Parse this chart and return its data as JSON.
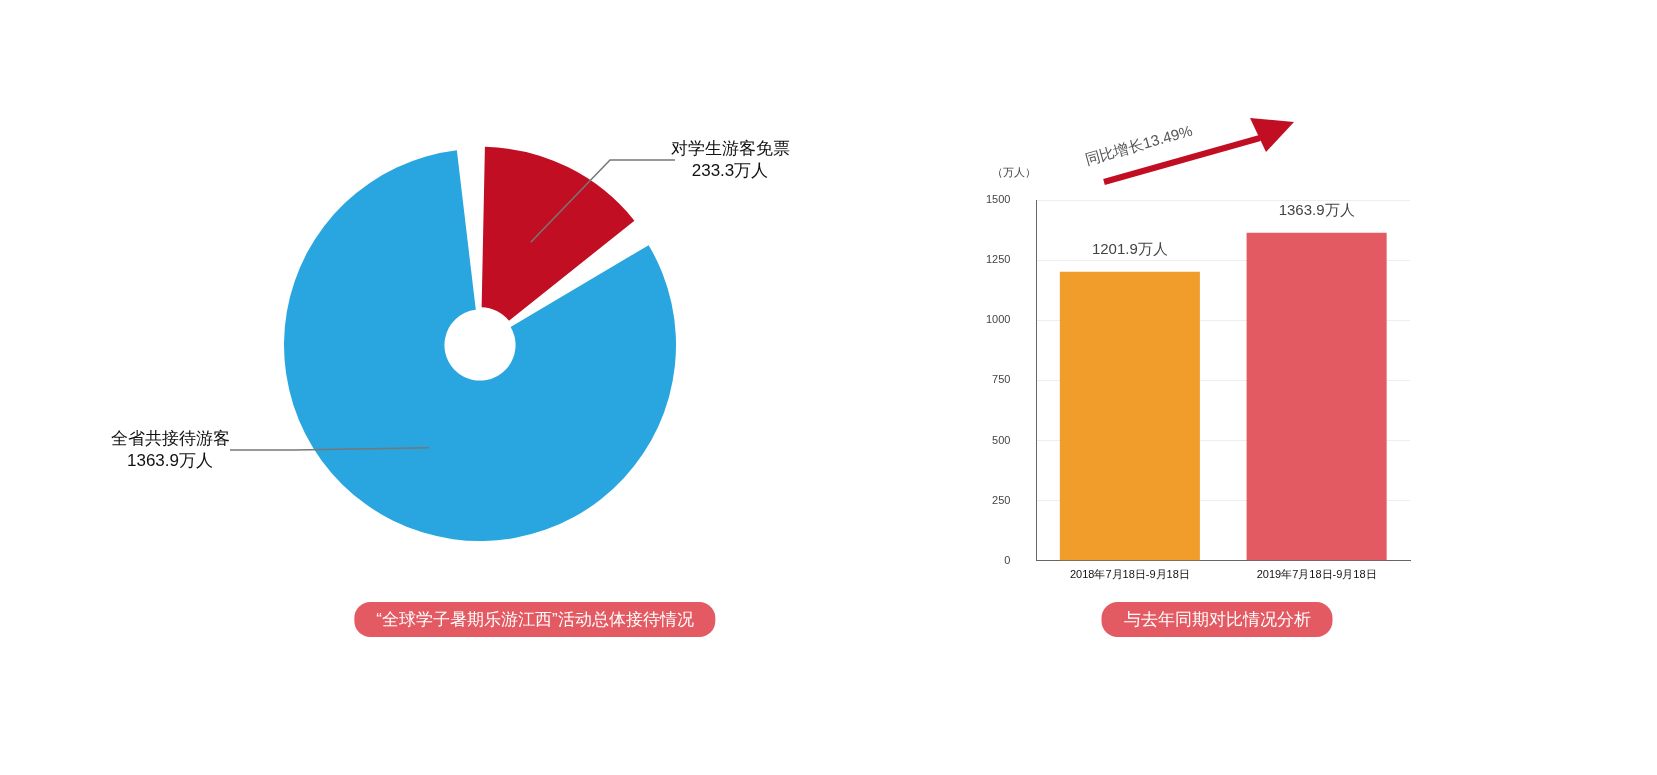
{
  "chart_data": [
    {
      "type": "donut",
      "title": "“全球学子暑期乐游江西”活动总体接待情况",
      "categories": [
        "对学生游客免票",
        "全省共接待游客"
      ],
      "values": [
        233.3,
        1363.9
      ],
      "colors": [
        "#c20e23",
        "#29a6df"
      ],
      "value_labels": [
        "233.3万人",
        "1363.9万人"
      ]
    },
    {
      "type": "bar",
      "title": "与去年同期对比情况分析",
      "ylabel": "（万人）",
      "categories": [
        "2018年7月18日-9月18日",
        "2019年7月18日-9月18日"
      ],
      "values": [
        1201.9,
        1363.9
      ],
      "colors": [
        "#f09d2b",
        "#e35a62"
      ],
      "value_labels": [
        "1201.9万人",
        "1363.9万人"
      ],
      "ylim": [
        0,
        1500
      ],
      "yticks": [
        0,
        250,
        500,
        750,
        1000,
        1250,
        1500
      ],
      "grid": "y",
      "annotations": [
        "同比增长13.49%"
      ]
    }
  ]
}
